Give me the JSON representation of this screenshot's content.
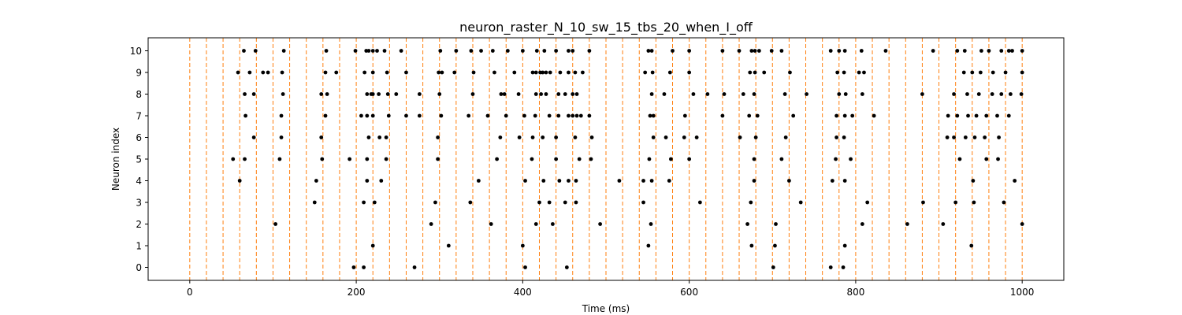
{
  "chart_data": {
    "type": "scatter",
    "title": "neuron_raster_N_10_sw_15_tbs_20_when_I_off",
    "xlabel": "Time (ms)",
    "ylabel": "Neuron index",
    "xlim": [
      -50,
      1050
    ],
    "ylim": [
      -0.6,
      10.6
    ],
    "xticks": [
      0,
      200,
      400,
      600,
      800,
      1000
    ],
    "yticks": [
      0,
      1,
      2,
      3,
      4,
      5,
      6,
      7,
      8,
      9,
      10
    ],
    "grid": false,
    "spike_color": "#000000",
    "marker_line_color": "#ff7f0e",
    "vertical_markers": [
      0,
      20,
      40,
      60,
      80,
      100,
      120,
      140,
      160,
      180,
      200,
      220,
      240,
      260,
      280,
      300,
      320,
      340,
      360,
      380,
      400,
      420,
      440,
      460,
      480,
      500,
      520,
      540,
      560,
      580,
      600,
      620,
      640,
      660,
      680,
      700,
      720,
      740,
      760,
      780,
      800,
      820,
      840,
      860,
      880,
      900,
      920,
      940,
      960,
      980,
      1000
    ],
    "spikes": [
      {
        "neuron": 10,
        "times": [
          65,
          79,
          113,
          164,
          199,
          212,
          215,
          220,
          225,
          234,
          254,
          301,
          320,
          338,
          350,
          364,
          382,
          400,
          417,
          426,
          440,
          455,
          460,
          480,
          551,
          555,
          580,
          600,
          640,
          660,
          675,
          679,
          684,
          699,
          711,
          770,
          780,
          787,
          807,
          836,
          893,
          922,
          931,
          951,
          960,
          975,
          984,
          988,
          1000
        ]
      }
    ]
  },
  "spike_rows": [
    {
      "neuron": 0,
      "times": [
        197,
        209,
        270,
        403,
        453,
        701,
        770,
        785
      ]
    },
    {
      "neuron": 1,
      "times": [
        220,
        311,
        400,
        551,
        675,
        703,
        787,
        939
      ]
    },
    {
      "neuron": 2,
      "times": [
        103,
        290,
        362,
        416,
        436,
        493,
        554,
        670,
        704,
        808,
        862,
        905,
        1000
      ]
    },
    {
      "neuron": 3,
      "times": [
        150,
        209,
        222,
        295,
        337,
        420,
        432,
        451,
        464,
        545,
        613,
        674,
        734,
        814,
        881,
        920,
        942,
        978
      ]
    },
    {
      "neuron": 4,
      "times": [
        60,
        152,
        213,
        230,
        347,
        403,
        425,
        444,
        455,
        464,
        516,
        545,
        555,
        576,
        678,
        720,
        772,
        787,
        941,
        991
      ]
    },
    {
      "neuron": 5,
      "times": [
        52,
        66,
        108,
        159,
        192,
        213,
        236,
        298,
        369,
        411,
        440,
        468,
        482,
        552,
        578,
        600,
        678,
        711,
        776,
        794,
        925,
        957,
        971
      ]
    },
    {
      "neuron": 6,
      "times": [
        77,
        110,
        158,
        215,
        228,
        236,
        298,
        373,
        396,
        412,
        424,
        440,
        463,
        483,
        557,
        572,
        594,
        609,
        661,
        680,
        716,
        777,
        786,
        910,
        918,
        932,
        943,
        955,
        972
      ]
    },
    {
      "neuron": 7,
      "times": [
        67,
        110,
        163,
        206,
        213,
        220,
        239,
        260,
        276,
        302,
        335,
        358,
        380,
        402,
        415,
        432,
        443,
        455,
        460,
        465,
        470,
        480,
        553,
        557,
        595,
        640,
        672,
        682,
        725,
        777,
        787,
        796,
        822,
        911,
        922,
        935,
        945,
        957,
        970,
        984
      ]
    },
    {
      "neuron": 8,
      "times": [
        66,
        77,
        112,
        158,
        165,
        213,
        218,
        220,
        227,
        238,
        248,
        276,
        300,
        340,
        374,
        378,
        395,
        416,
        422,
        428,
        443,
        451,
        460,
        465,
        555,
        570,
        605,
        622,
        642,
        665,
        678,
        715,
        741,
        780,
        788,
        808,
        880,
        918,
        934,
        948,
        964,
        975,
        986,
        999
      ]
    },
    {
      "neuron": 9,
      "times": [
        58,
        72,
        88,
        94,
        111,
        163,
        176,
        210,
        220,
        237,
        260,
        299,
        303,
        318,
        341,
        366,
        390,
        412,
        416,
        421,
        424,
        428,
        433,
        445,
        455,
        463,
        472,
        547,
        556,
        577,
        600,
        673,
        679,
        690,
        721,
        778,
        786,
        804,
        810,
        930,
        940,
        950,
        965,
        980,
        1000
      ]
    }
  ]
}
